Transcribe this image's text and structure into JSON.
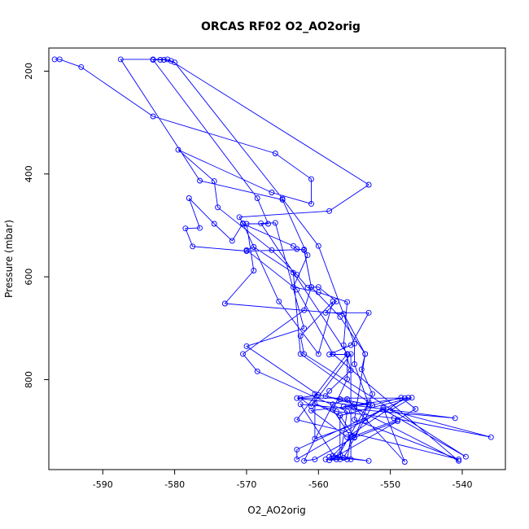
{
  "chart_data": {
    "type": "line",
    "title": "ORCAS RF02 O2_AO2orig",
    "xlabel": "O2_AO2orig",
    "ylabel": "Pressure (mbar)",
    "xlim": [
      -597.5,
      -534.0
    ],
    "ylim": [
      975.0,
      155.0
    ],
    "y_reversed": true,
    "x_ticks": [
      -590,
      -580,
      -570,
      -560,
      -550,
      -540
    ],
    "y_ticks": [
      200,
      400,
      600,
      800
    ],
    "marker": "open-circle",
    "color": "#0000ff",
    "grid": false,
    "legend": "none",
    "series": [
      {
        "points": [
          [
            -596.7,
            177
          ],
          [
            -596.0,
            177
          ],
          [
            -593.0,
            192
          ],
          [
            -583.0,
            288
          ],
          [
            -566.0,
            360
          ],
          [
            -561.0,
            410
          ],
          [
            -561.0,
            458
          ],
          [
            -566.5,
            436
          ],
          [
            -579.5,
            353
          ],
          [
            -574.5,
            414
          ],
          [
            -574.0,
            465
          ],
          [
            -566.5,
            548
          ],
          [
            -563.0,
            596
          ],
          [
            -561.5,
            621
          ],
          [
            -560.0,
            620
          ],
          [
            -557.5,
            648
          ],
          [
            -559.0,
            670
          ],
          [
            -553.0,
            670
          ],
          [
            -555.5,
            733
          ],
          [
            -558.5,
            751
          ],
          [
            -556.0,
            751
          ],
          [
            -556.0,
            799
          ],
          [
            -558.0,
            858
          ],
          [
            -555.5,
            912
          ],
          [
            -556.0,
            955
          ],
          [
            -559.0,
            955
          ],
          [
            -556.5,
            952
          ],
          [
            -552.5,
            850
          ],
          [
            -548.5,
            835
          ],
          [
            -546.5,
            857
          ],
          [
            -549.0,
            878
          ],
          [
            -555.5,
            912
          ],
          [
            -558.0,
            948
          ],
          [
            -553.0,
            958
          ],
          [
            -558.5,
            950
          ],
          [
            -557.0,
            946
          ],
          [
            -557.0,
            870
          ],
          [
            -560.5,
            847
          ],
          [
            -557.5,
            862
          ],
          [
            -549.5,
            875
          ],
          [
            -536.0,
            912
          ],
          [
            -550.0,
            860
          ],
          [
            -547.0,
            835
          ],
          [
            -557.0,
            870
          ],
          [
            -555.0,
            912
          ],
          [
            -560.5,
            955
          ],
          [
            -562.0,
            958
          ],
          [
            -558.0,
            848
          ],
          [
            -556.0,
            838
          ],
          [
            -548.0,
            960
          ],
          [
            -551.0,
            855
          ],
          [
            -553.5,
            880
          ],
          [
            -560.5,
            915
          ],
          [
            -560.5,
            828
          ],
          [
            -557.0,
            838
          ],
          [
            -553.0,
            848
          ],
          [
            -555.0,
            848
          ],
          [
            -559.0,
            832
          ],
          [
            -558.5,
            822
          ],
          [
            -555.5,
            782
          ],
          [
            -556.5,
            733
          ],
          [
            -556.0,
            649
          ],
          [
            -560.0,
            630
          ],
          [
            -563.5,
            620
          ],
          [
            -561.5,
            558
          ],
          [
            -565.0,
            450
          ],
          [
            -576.5,
            413
          ],
          [
            -587.5,
            177
          ],
          [
            -583.0,
            177
          ],
          [
            -581.0,
            177
          ],
          [
            -580.5,
            180
          ],
          [
            -553.0,
            421
          ],
          [
            -558.5,
            472
          ],
          [
            -571.0,
            484
          ],
          [
            -570.5,
            497
          ],
          [
            -563.5,
            540
          ],
          [
            -563.0,
            546
          ],
          [
            -562.0,
            548
          ],
          [
            -561.0,
            620
          ],
          [
            -557.0,
            678
          ],
          [
            -553.5,
            750
          ],
          [
            -555.0,
            878
          ],
          [
            -540.5,
            955
          ],
          [
            -563.0,
            878
          ],
          [
            -556.0,
            750
          ],
          [
            -568.0,
            496
          ],
          [
            -566.0,
            495
          ],
          [
            -562.0,
            700
          ],
          [
            -570.0,
            735
          ],
          [
            -560.0,
            830
          ],
          [
            -563.0,
            836
          ],
          [
            -541.0,
            875
          ],
          [
            -562.5,
            848
          ],
          [
            -557.5,
            955
          ],
          [
            -553.0,
            844
          ],
          [
            -562.5,
            750
          ],
          [
            -563.5,
            592
          ],
          [
            -569.0,
            542
          ],
          [
            -570.0,
            548
          ],
          [
            -563.0,
            625
          ],
          [
            -558.0,
            750
          ],
          [
            -540.5,
            958
          ],
          [
            -555.0,
            855
          ],
          [
            -556.5,
            852
          ],
          [
            -547.5,
            835
          ],
          [
            -563.0,
            936
          ],
          [
            -563.0,
            955
          ],
          [
            -551.0,
            858
          ],
          [
            -539.5,
            950
          ],
          [
            -562.0,
            750
          ],
          [
            -562.5,
            715
          ],
          [
            -558.0,
            648
          ],
          [
            -560.0,
            750
          ],
          [
            -565.5,
            648
          ],
          [
            -570.5,
            496
          ],
          [
            -572.0,
            530
          ],
          [
            -574.5,
            497
          ],
          [
            -578.0,
            447
          ],
          [
            -576.5,
            505
          ],
          [
            -578.5,
            506
          ],
          [
            -577.5,
            541
          ],
          [
            -570.0,
            550
          ],
          [
            -562.0,
            547
          ],
          [
            -561.0,
            620
          ],
          [
            -562.0,
            665
          ],
          [
            -570.5,
            750
          ],
          [
            -568.5,
            784
          ],
          [
            -556.0,
            862
          ],
          [
            -557.0,
            955
          ],
          [
            -558.5,
            957
          ],
          [
            -549.0,
            881
          ],
          [
            -555.0,
            913
          ],
          [
            -552.5,
            828
          ],
          [
            -554.0,
            780
          ],
          [
            -553.5,
            750
          ],
          [
            -556.5,
            672
          ],
          [
            -573.0,
            652
          ],
          [
            -569.0,
            588
          ],
          [
            -570.0,
            497
          ],
          [
            -567.0,
            497
          ],
          [
            -568.5,
            447
          ],
          [
            -583.0,
            178
          ],
          [
            -582.0,
            178
          ],
          [
            -581.5,
            178
          ],
          [
            -580.0,
            183
          ],
          [
            -565.0,
            448
          ],
          [
            -560.0,
            540
          ],
          [
            -555.0,
            730
          ],
          [
            -555.0,
            770
          ],
          [
            -553.0,
            848
          ],
          [
            -561.0,
            860
          ],
          [
            -556.0,
            912
          ],
          [
            -548.0,
            836
          ],
          [
            -562.5,
            836
          ],
          [
            -561.0,
            852
          ],
          [
            -555.5,
            750
          ],
          [
            -555.5,
            955
          ]
        ]
      }
    ]
  }
}
